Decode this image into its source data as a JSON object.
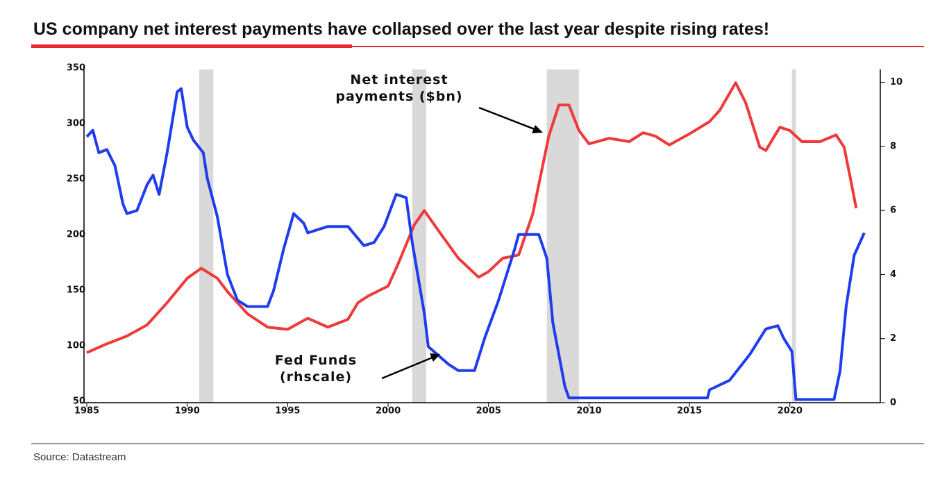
{
  "chart_data": {
    "type": "line",
    "title": "US company net interest payments have collapsed over the last year despite rising rates!",
    "source": "Source: Datastream",
    "xlim": [
      1985,
      2024.5
    ],
    "xticks": [
      1985,
      1990,
      1995,
      2000,
      2005,
      2010,
      2015,
      2020
    ],
    "ylim": [
      50,
      350
    ],
    "yticks": [
      50,
      100,
      150,
      200,
      250,
      300,
      350
    ],
    "y2lim": [
      0,
      10.4
    ],
    "y2ticks": [
      0,
      2,
      4,
      6,
      8,
      10
    ],
    "recession_color": "#d9d9d9",
    "recessions": [
      [
        1990.6,
        1991.3
      ],
      [
        2001.2,
        2001.9
      ],
      [
        2007.9,
        2009.5
      ],
      [
        2020.1,
        2020.3
      ]
    ],
    "series": [
      {
        "name": "Net interest payments ($bn)",
        "color": "#ee3a3a",
        "x": [
          1985,
          1986,
          1987,
          1988,
          1989,
          1990,
          1990.7,
          1991.5,
          1992,
          1993,
          1994,
          1995,
          1996,
          1997,
          1998,
          1998.5,
          1999,
          2000,
          2000.5,
          2001.3,
          2001.8,
          2002.5,
          2003.5,
          2004.5,
          2005,
          2005.7,
          2006.5,
          2007.2,
          2008,
          2008.5,
          2009,
          2009.5,
          2010,
          2011,
          2012,
          2012.7,
          2013.3,
          2014,
          2015,
          2016,
          2016.5,
          2017.3,
          2017.8,
          2018.5,
          2018.8,
          2019.5,
          2020,
          2020.6,
          2021.5,
          2022.3,
          2022.7,
          2023,
          2023.3
        ],
        "values": [
          95,
          103,
          110,
          120,
          140,
          162,
          171,
          162,
          150,
          130,
          118,
          116,
          126,
          118,
          125,
          140,
          146,
          155,
          175,
          210,
          223,
          205,
          180,
          163,
          168,
          180,
          183,
          220,
          290,
          318,
          318,
          295,
          283,
          288,
          285,
          293,
          290,
          282,
          292,
          303,
          313,
          338,
          320,
          280,
          277,
          298,
          295,
          285,
          285,
          291,
          280,
          253,
          225
        ]
      },
      {
        "name": "Fed Funds (rhscale)",
        "color": "#1f3cf0",
        "axis": "y2",
        "x": [
          1985,
          1985.3,
          1985.6,
          1986,
          1986.4,
          1986.8,
          1987,
          1987.5,
          1988,
          1988.3,
          1988.6,
          1989,
          1989.5,
          1989.7,
          1990,
          1990.3,
          1990.8,
          1991,
          1991.5,
          1992,
          1992.5,
          1993,
          1994,
          1994.3,
          1994.8,
          1995.3,
          1995.8,
          1996,
          1997,
          1998,
          1998.8,
          1999.3,
          1999.8,
          2000.4,
          2000.9,
          2001.2,
          2001.8,
          2002,
          2003,
          2003.5,
          2004.3,
          2004.8,
          2005.5,
          2006.3,
          2006.5,
          2007.5,
          2007.9,
          2008.2,
          2008.8,
          2009,
          2015.9,
          2016,
          2017,
          2017.5,
          2018,
          2018.8,
          2019.4,
          2019.7,
          2020.1,
          2020.3,
          2022.2,
          2022.5,
          2022.8,
          2023.2,
          2023.7
        ],
        "values": [
          8.3,
          8.5,
          7.8,
          7.9,
          7.4,
          6.2,
          5.9,
          6.0,
          6.8,
          7.1,
          6.5,
          7.8,
          9.7,
          9.8,
          8.6,
          8.2,
          7.8,
          7.0,
          5.8,
          4.0,
          3.2,
          3.0,
          3.0,
          3.5,
          4.8,
          5.9,
          5.6,
          5.3,
          5.5,
          5.5,
          4.9,
          5.0,
          5.5,
          6.5,
          6.4,
          5.0,
          2.8,
          1.75,
          1.2,
          1.0,
          1.0,
          2.0,
          3.2,
          4.8,
          5.25,
          5.25,
          4.5,
          2.5,
          0.5,
          0.15,
          0.15,
          0.4,
          0.7,
          1.1,
          1.5,
          2.3,
          2.4,
          2.0,
          1.6,
          0.1,
          0.1,
          1.0,
          3.0,
          4.6,
          5.3
        ]
      }
    ]
  }
}
